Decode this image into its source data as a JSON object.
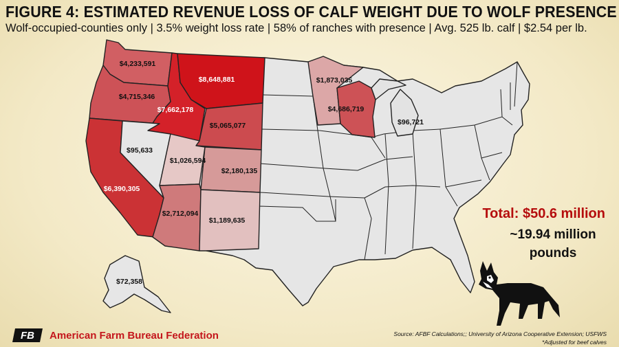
{
  "title": "FIGURE 4: ESTIMATED REVENUE LOSS OF CALF WEIGHT DUE TO WOLF PRESENCE",
  "subtitle": "Wolf-occupied-counties only | 3.5% weight loss rate | 58% of ranches with presence | Avg. 525 lb. calf | $2.54 per lb.",
  "states": [
    {
      "name": "Washington",
      "label": "$4,233,591",
      "value": 4233591,
      "color": "#d15f63"
    },
    {
      "name": "Oregon",
      "label": "$4,715,346",
      "value": 4715346,
      "color": "#cd5257"
    },
    {
      "name": "Idaho",
      "label": "$7,662,178",
      "value": 7662178,
      "color": "#d42129"
    },
    {
      "name": "Montana",
      "label": "$8,648,881",
      "value": 8648881,
      "color": "#cf131a"
    },
    {
      "name": "Wyoming",
      "label": "$5,065,077",
      "value": 5065077,
      "color": "#cc4b4f"
    },
    {
      "name": "California",
      "label": "$6,390,305",
      "value": 6390305,
      "color": "#cb3235"
    },
    {
      "name": "Nevada",
      "label": "$95,633",
      "value": 95633,
      "color": "#e6e6e6"
    },
    {
      "name": "Utah",
      "label": "$1,026,594",
      "value": 1026594,
      "color": "#e6c8c6"
    },
    {
      "name": "Colorado",
      "label": "$2,180,135",
      "value": 2180135,
      "color": "#d69a99"
    },
    {
      "name": "Arizona",
      "label": "$2,712,094",
      "value": 2712094,
      "color": "#cf7a7b"
    },
    {
      "name": "New Mexico",
      "label": "$1,189,635",
      "value": 1189635,
      "color": "#e2c0bf"
    },
    {
      "name": "Minnesota",
      "label": "$1,873,035",
      "value": 1873035,
      "color": "#dca7a7"
    },
    {
      "name": "Wisconsin",
      "label": "$4,686,719",
      "value": 4686719,
      "color": "#cd5256"
    },
    {
      "name": "Michigan",
      "label": "$96,721",
      "value": 96721,
      "color": "#e3e3e3"
    },
    {
      "name": "Alaska",
      "label": "$72,358",
      "value": 72358,
      "color": "#e6e6e6"
    }
  ],
  "total_label": "Total: $50.6 million",
  "pounds_line1": "~19.94 million",
  "pounds_line2": "pounds",
  "organization": "American Farm Bureau Federation",
  "organization_mark": "FB",
  "source_line": "Source: AFBF Calculations;; University of Arizona Cooperative Extension; USFWS",
  "footnote": "*Adjusted for beef calves",
  "colors": {
    "accent": "#b50d0d",
    "neutral": "#e6e6e6",
    "border": "#222222"
  }
}
